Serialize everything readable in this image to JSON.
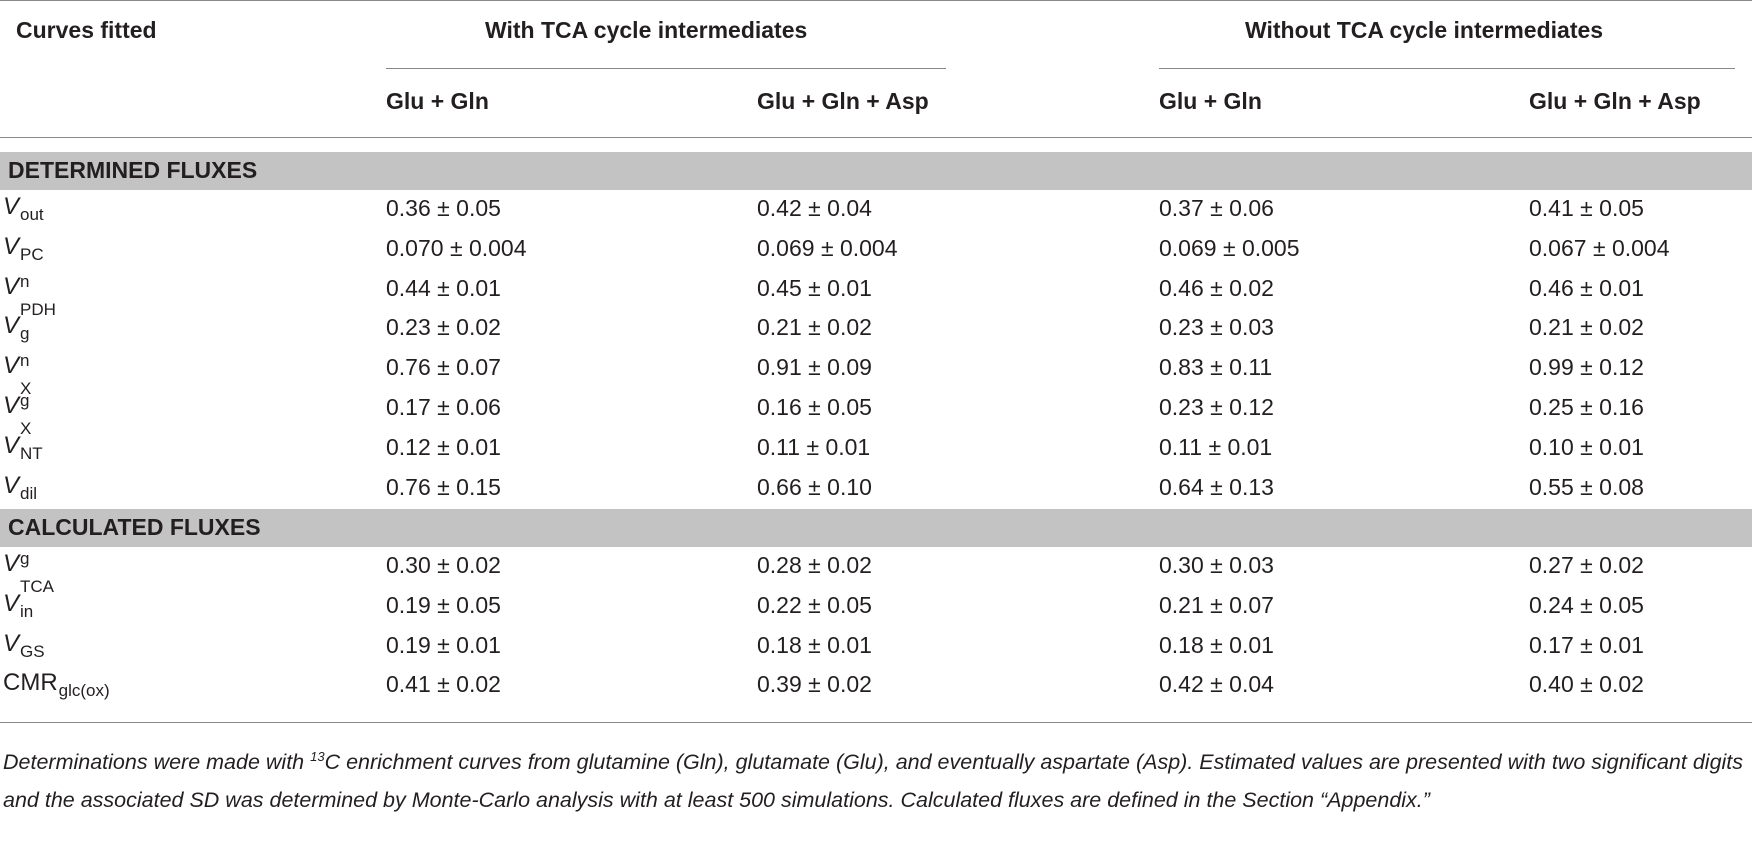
{
  "header": {
    "corner": "Curves fitted",
    "group1": "With TCA cycle intermediates",
    "group2": "Without TCA cycle intermediates",
    "subcols": [
      "Glu + Gln",
      "Glu + Gln + Asp",
      "Glu + Gln",
      "Glu + Gln + Asp"
    ]
  },
  "sections": [
    {
      "title": "DETERMINED FLUXES",
      "rows": [
        {
          "var": "V",
          "sup": "",
          "sub": "out",
          "values": [
            "0.36 ± 0.05",
            "0.42 ± 0.04",
            "0.37 ± 0.06",
            "0.41 ± 0.05"
          ]
        },
        {
          "var": "V",
          "sup": "",
          "sub": "PC",
          "values": [
            "0.070 ± 0.004",
            "0.069 ± 0.004",
            "0.069 ± 0.005",
            "0.067 ± 0.004"
          ]
        },
        {
          "var": "V",
          "sup": "n",
          "sub": "PDH",
          "values": [
            "0.44 ± 0.01",
            "0.45 ± 0.01",
            "0.46 ± 0.02",
            "0.46 ± 0.01"
          ]
        },
        {
          "var": "V",
          "sup": "",
          "sub": "g",
          "values": [
            "0.23 ± 0.02",
            "0.21 ± 0.02",
            "0.23 ± 0.03",
            "0.21 ± 0.02"
          ]
        },
        {
          "var": "V",
          "sup": "n",
          "sub": "X",
          "values": [
            "0.76 ± 0.07",
            "0.91 ± 0.09",
            "0.83 ± 0.11",
            "0.99 ± 0.12"
          ]
        },
        {
          "var": "V",
          "sup": "g",
          "sub": "X",
          "values": [
            "0.17 ± 0.06",
            "0.16 ± 0.05",
            "0.23 ± 0.12",
            "0.25 ± 0.16"
          ]
        },
        {
          "var": "V",
          "sup": "",
          "sub": "NT",
          "values": [
            "0.12 ± 0.01",
            "0.11 ± 0.01",
            "0.11 ± 0.01",
            "0.10 ± 0.01"
          ]
        },
        {
          "var": "V",
          "sup": "",
          "sub": "dil",
          "values": [
            "0.76 ± 0.15",
            "0.66 ± 0.10",
            "0.64 ± 0.13",
            "0.55 ± 0.08"
          ]
        }
      ]
    },
    {
      "title": "CALCULATED FLUXES",
      "rows": [
        {
          "var": "V",
          "sup": "g",
          "sub": "TCA",
          "values": [
            "0.30 ± 0.02",
            "0.28 ± 0.02",
            "0.30 ± 0.03",
            "0.27 ± 0.02"
          ]
        },
        {
          "var": "V",
          "sup": "",
          "sub": "in",
          "values": [
            "0.19 ± 0.05",
            "0.22 ± 0.05",
            "0.21 ± 0.07",
            "0.24 ± 0.05"
          ]
        },
        {
          "var": "V",
          "sup": "",
          "sub": "GS",
          "values": [
            "0.19 ± 0.01",
            "0.18 ± 0.01",
            "0.18 ± 0.01",
            "0.17 ± 0.01"
          ]
        },
        {
          "var": "CMR",
          "sup": "",
          "sub": "glc(ox)",
          "values": [
            "0.41 ± 0.02",
            "0.39 ± 0.02",
            "0.42 ± 0.04",
            "0.40 ± 0.02"
          ]
        }
      ]
    }
  ],
  "footnote": {
    "pre": "Determinations were made with ",
    "sup": "13",
    "post": "C enrichment curves from glutamine (Gln), glutamate (Glu), and eventually aspartate (Asp). Estimated values are presented with two significant digits and the associated SD was determined by Monte-Carlo analysis with at least 500 simulations. Calculated fluxes are defined in the Section “Appendix.”"
  }
}
